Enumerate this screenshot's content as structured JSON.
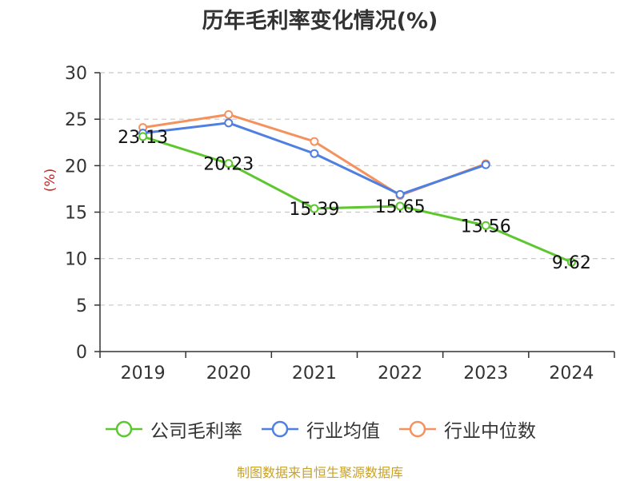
{
  "chart_data": {
    "type": "line",
    "title": "历年毛利率变化情况(%)",
    "ylabel": "(%)",
    "ylim": [
      0,
      30
    ],
    "yticks": [
      0,
      5,
      10,
      15,
      20,
      25,
      30
    ],
    "categories": [
      "2019",
      "2020",
      "2021",
      "2022",
      "2023",
      "2024"
    ],
    "grid": true,
    "legend_position": "bottom",
    "series": [
      {
        "name": "公司毛利率",
        "color": "#5cc72f",
        "values": [
          23.13,
          20.23,
          15.39,
          15.65,
          13.56,
          9.62
        ],
        "labels": [
          "23.13",
          "20.23",
          "15.39",
          "15.65",
          "13.56",
          "9.62"
        ]
      },
      {
        "name": "行业均值",
        "color": "#4f7fe0",
        "values": [
          23.5,
          24.6,
          21.3,
          16.9,
          20.1,
          null
        ]
      },
      {
        "name": "行业中位数",
        "color": "#f5915c",
        "values": [
          24.1,
          25.5,
          22.6,
          16.8,
          20.2,
          null
        ]
      }
    ]
  },
  "footer": {
    "source": "制图数据来自恒生聚源数据库"
  }
}
